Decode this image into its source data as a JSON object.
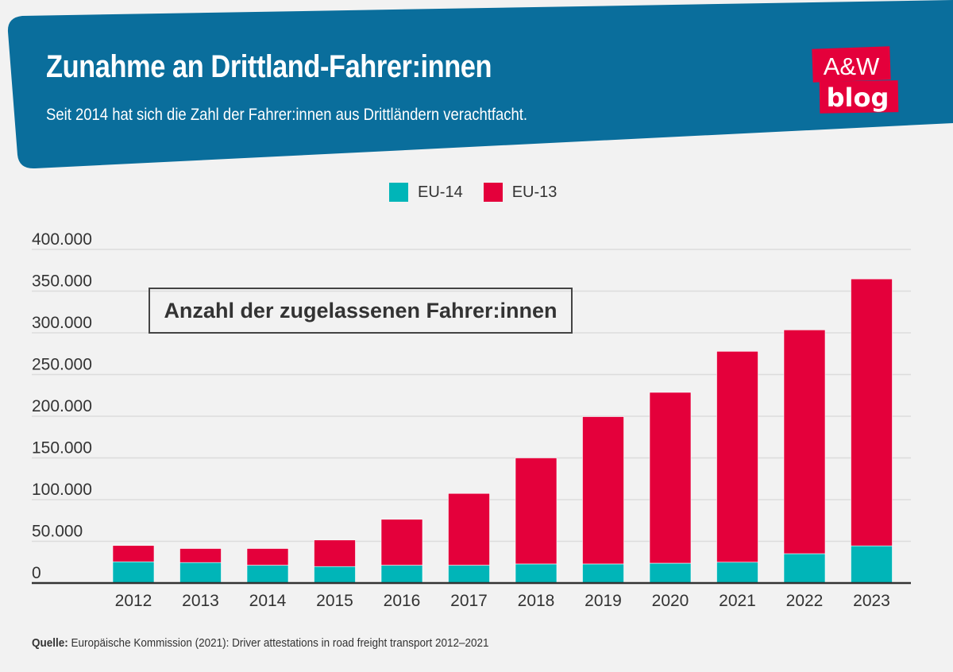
{
  "header": {
    "title": "Zunahme an Drittland-Fahrer:innen",
    "subtitle": "Seit 2014 hat sich die Zahl der Fahrer:innen aus Drittländern verachtfacht.",
    "logo_text": [
      "A&W",
      "blog"
    ],
    "banner_color": "#0a6e9c",
    "logo_color": "#e4003b"
  },
  "source": {
    "label": "Quelle:",
    "text": " Europäische Kommission (2021): Driver attestations in road freight transport 2012–2021"
  },
  "chart_data": {
    "type": "bar",
    "stacked": true,
    "annotation": "Anzahl der zugelassenen Fahrer:innen",
    "categories": [
      "2012",
      "2013",
      "2014",
      "2015",
      "2016",
      "2017",
      "2018",
      "2019",
      "2020",
      "2021",
      "2022",
      "2023"
    ],
    "series": [
      {
        "name": "EU-14",
        "color": "#00b5b8",
        "values": [
          25500,
          24600,
          21400,
          19800,
          21400,
          21400,
          22900,
          22900,
          23800,
          25000,
          35200,
          44600
        ]
      },
      {
        "name": "EU-13",
        "color": "#e4003b",
        "values": [
          19500,
          16800,
          20000,
          31800,
          55000,
          86000,
          127100,
          176600,
          204800,
          252800,
          268300,
          320000
        ]
      }
    ],
    "ylim": [
      0,
      400000
    ],
    "yticks": [
      0,
      50000,
      100000,
      150000,
      200000,
      250000,
      300000,
      350000,
      400000
    ],
    "ytick_labels": [
      "0",
      "50.000",
      "100.000",
      "150.000",
      "200.000",
      "250.000",
      "300.000",
      "350.000",
      "400.000"
    ],
    "grid": true,
    "legend_position": "top-center"
  }
}
